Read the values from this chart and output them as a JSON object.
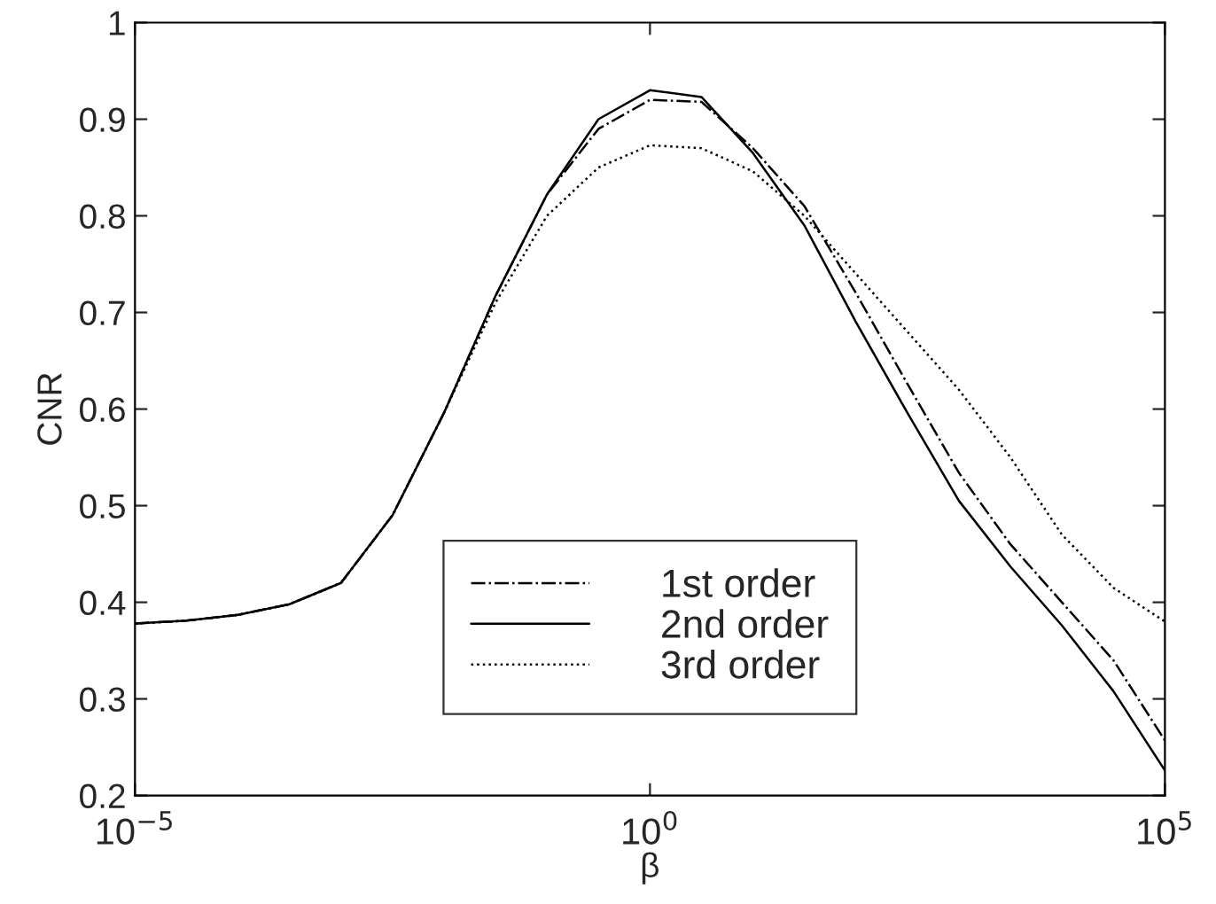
{
  "chart_data": {
    "type": "line",
    "xlabel": "β",
    "ylabel": "CNR",
    "log": "x",
    "x": [
      1e-05,
      3.162e-05,
      0.0001,
      0.0003162,
      0.001,
      0.003162,
      0.01,
      0.03162,
      0.1,
      0.3162,
      1,
      3.162,
      10,
      31.62,
      100,
      316.2,
      1000,
      3162,
      10000,
      31620,
      100000
    ],
    "xlim": [
      1e-05,
      100000
    ],
    "xticks": [
      {
        "value": 1e-05,
        "label": "10$^{−5}$"
      },
      {
        "value": 1,
        "label": "10$^{0}$"
      },
      {
        "value": 100000,
        "label": "10$^{5}$"
      }
    ],
    "ylim": [
      0.2,
      1
    ],
    "yticks": [
      0.2,
      0.3,
      0.4,
      0.5,
      0.6,
      0.7,
      0.8,
      0.9,
      1
    ],
    "legend": "bottom",
    "grid": false,
    "series": [
      {
        "name": "1st order",
        "color": "#000000",
        "line_style": "dashdot",
        "values": [
          0.378,
          0.381,
          0.387,
          0.398,
          0.42,
          0.49,
          0.596,
          0.717,
          0.822,
          0.89,
          0.92,
          0.918,
          0.87,
          0.81,
          0.72,
          0.626,
          0.534,
          0.46,
          0.4,
          0.34,
          0.257
        ]
      },
      {
        "name": "2nd order",
        "color": "#000000",
        "line_style": "solid",
        "values": [
          0.378,
          0.381,
          0.387,
          0.398,
          0.42,
          0.49,
          0.596,
          0.717,
          0.822,
          0.9,
          0.93,
          0.923,
          0.865,
          0.79,
          0.69,
          0.596,
          0.505,
          0.437,
          0.376,
          0.308,
          0.226
        ]
      },
      {
        "name": "3rd order",
        "color": "#000000",
        "line_style": "dotted",
        "values": [
          0.378,
          0.381,
          0.387,
          0.398,
          0.42,
          0.49,
          0.596,
          0.71,
          0.8,
          0.85,
          0.873,
          0.87,
          0.846,
          0.8,
          0.74,
          0.68,
          0.62,
          0.55,
          0.47,
          0.415,
          0.38
        ]
      }
    ]
  }
}
